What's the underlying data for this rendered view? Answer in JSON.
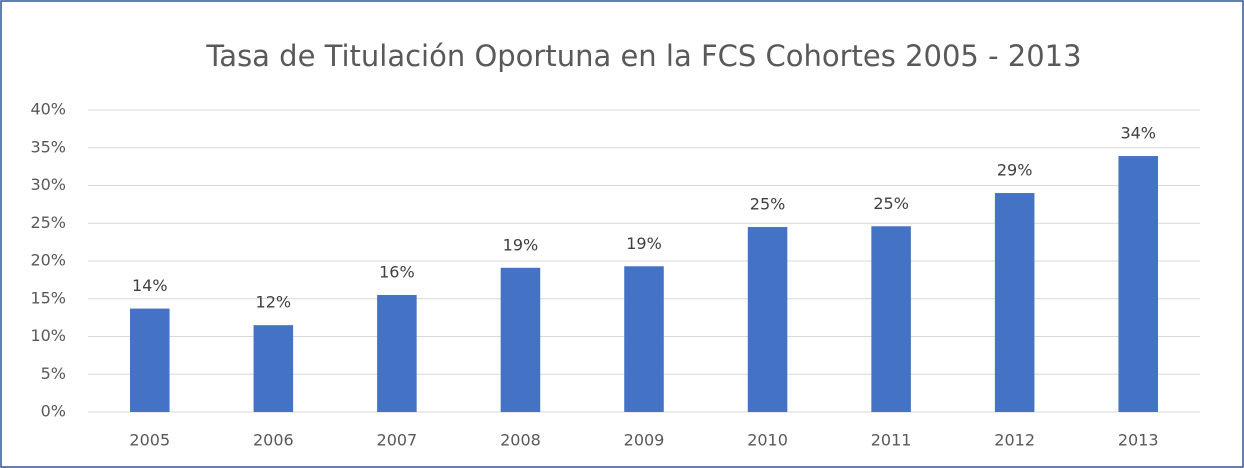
{
  "chart_data": {
    "type": "bar",
    "title": "Tasa de Titulación Oportuna en la FCS Cohortes 2005 - 2013",
    "categories": [
      "2005",
      "2006",
      "2007",
      "2008",
      "2009",
      "2010",
      "2011",
      "2012",
      "2013"
    ],
    "values": [
      13.7,
      11.5,
      15.5,
      19.1,
      19.3,
      24.5,
      24.6,
      29.0,
      33.9
    ],
    "value_labels": [
      "14%",
      "12%",
      "16%",
      "19%",
      "19%",
      "25%",
      "25%",
      "29%",
      "34%"
    ],
    "color": "#4472c4",
    "ylim": [
      0,
      40
    ],
    "yticks": [
      {
        "value": 0,
        "label": "0%"
      },
      {
        "value": 5,
        "label": "5%"
      },
      {
        "value": 10,
        "label": "10%"
      },
      {
        "value": 15,
        "label": "15%"
      },
      {
        "value": 20,
        "label": "20%"
      },
      {
        "value": 25,
        "label": "25%"
      },
      {
        "value": 30,
        "label": "30%"
      },
      {
        "value": 35,
        "label": "35%"
      },
      {
        "value": 40,
        "label": "40%"
      }
    ],
    "grid": true
  }
}
